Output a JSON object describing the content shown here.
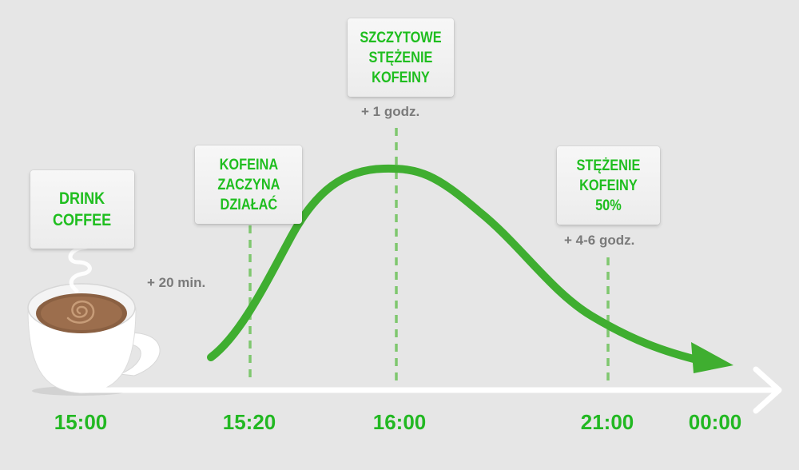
{
  "cards": {
    "drink": "DRINK\nCOFFEE",
    "start": "KOFEINA\nZACZYNA\nDZIAŁAĆ",
    "peak": "SZCZYTOWE\nSTĘŻENIE\nKOFEINY",
    "half": "STĘŻENIE\nKOFEINY\n50%"
  },
  "notes": {
    "start": "+ 20 min.",
    "peak": "+ 1 godz.",
    "half": "+  4-6 godz."
  },
  "times": [
    "15:00",
    "15:20",
    "16:00",
    "21:00",
    "00:00"
  ],
  "colors": {
    "background": "#e6e6e6",
    "accent_green": "#1fbe1f",
    "curve_green": "#3fae30",
    "note_gray": "#7a7a7a",
    "axis": "#ffffff"
  },
  "icons": [
    "coffee-cup-icon",
    "steam-icon",
    "arrow-right-icon"
  ]
}
